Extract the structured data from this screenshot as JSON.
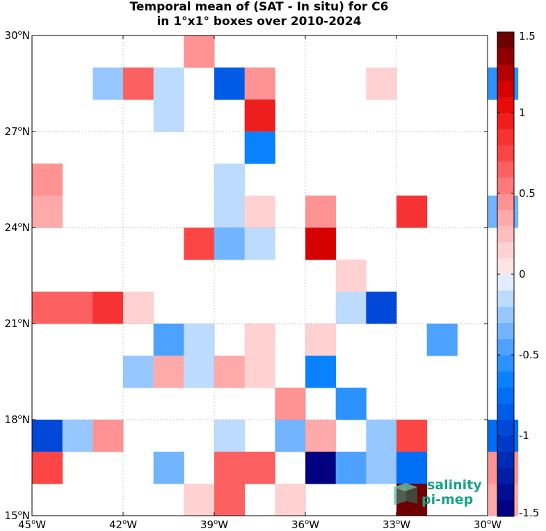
{
  "chart_data": {
    "type": "heatmap",
    "title_lines": [
      "Temporal mean of (SAT - In situ) for C6",
      "in 1°x1° boxes over 2010-2024"
    ],
    "xlim": [
      -45,
      -30
    ],
    "ylim": [
      15,
      30
    ],
    "x_ticks": [
      {
        "value": -45,
        "deg": "45",
        "hemi": "W"
      },
      {
        "value": -42,
        "deg": "42",
        "hemi": "W"
      },
      {
        "value": -39,
        "deg": "39",
        "hemi": "W"
      },
      {
        "value": -36,
        "deg": "36",
        "hemi": "W"
      },
      {
        "value": -33,
        "deg": "33",
        "hemi": "W"
      },
      {
        "value": -30,
        "deg": "30",
        "hemi": "W"
      }
    ],
    "y_ticks": [
      {
        "value": 30,
        "deg": "30",
        "hemi": "N"
      },
      {
        "value": 27,
        "deg": "27",
        "hemi": "N"
      },
      {
        "value": 24,
        "deg": "24",
        "hemi": "N"
      },
      {
        "value": 21,
        "deg": "21",
        "hemi": "N"
      },
      {
        "value": 18,
        "deg": "18",
        "hemi": "N"
      },
      {
        "value": 15,
        "deg": "15",
        "hemi": "N"
      }
    ],
    "grid": true,
    "colorbar": {
      "range": [
        -1.5,
        1.5
      ],
      "ticks": [
        {
          "value": 1.5,
          "label": "1.5"
        },
        {
          "value": 1.0,
          "label": "1"
        },
        {
          "value": 0.5,
          "label": "0.5"
        },
        {
          "value": 0.0,
          "label": "0"
        },
        {
          "value": -0.5,
          "label": "-0.5"
        },
        {
          "value": -1.0,
          "label": "-1"
        },
        {
          "value": -1.5,
          "label": "-1.5"
        }
      ]
    },
    "cells": [
      {
        "lon": -40,
        "lat": 29,
        "value": 0.4
      },
      {
        "lon": -43,
        "lat": 28,
        "value": -0.25
      },
      {
        "lon": -42,
        "lat": 28,
        "value": 0.6
      },
      {
        "lon": -41,
        "lat": 28,
        "value": -0.15
      },
      {
        "lon": -39,
        "lat": 28,
        "value": -0.85
      },
      {
        "lon": -38,
        "lat": 28,
        "value": 0.4
      },
      {
        "lon": -34,
        "lat": 28,
        "value": 0.15
      },
      {
        "lon": -30,
        "lat": 28,
        "value": -0.6
      },
      {
        "lon": -41,
        "lat": 27,
        "value": -0.15
      },
      {
        "lon": -38,
        "lat": 27,
        "value": 0.95
      },
      {
        "lon": -38,
        "lat": 26,
        "value": -0.7
      },
      {
        "lon": -45,
        "lat": 25,
        "value": 0.4
      },
      {
        "lon": -39,
        "lat": 25,
        "value": -0.15
      },
      {
        "lon": -45,
        "lat": 24,
        "value": 0.3
      },
      {
        "lon": -39,
        "lat": 24,
        "value": -0.15
      },
      {
        "lon": -38,
        "lat": 24,
        "value": 0.15
      },
      {
        "lon": -36,
        "lat": 24,
        "value": 0.4
      },
      {
        "lon": -33,
        "lat": 24,
        "value": 0.8
      },
      {
        "lon": -30,
        "lat": 24,
        "value": -0.35
      },
      {
        "lon": -40,
        "lat": 23,
        "value": 0.7
      },
      {
        "lon": -39,
        "lat": 23,
        "value": -0.3
      },
      {
        "lon": -38,
        "lat": 23,
        "value": -0.15
      },
      {
        "lon": -36,
        "lat": 23,
        "value": 1.1
      },
      {
        "lon": -35,
        "lat": 22,
        "value": 0.15
      },
      {
        "lon": -45,
        "lat": 21,
        "value": 0.6
      },
      {
        "lon": -44,
        "lat": 21,
        "value": 0.6
      },
      {
        "lon": -43,
        "lat": 21,
        "value": 0.8
      },
      {
        "lon": -42,
        "lat": 21,
        "value": 0.15
      },
      {
        "lon": -35,
        "lat": 21,
        "value": -0.15
      },
      {
        "lon": -34,
        "lat": 21,
        "value": -0.9
      },
      {
        "lon": -41,
        "lat": 20,
        "value": -0.45
      },
      {
        "lon": -40,
        "lat": 20,
        "value": -0.15
      },
      {
        "lon": -38,
        "lat": 20,
        "value": 0.15
      },
      {
        "lon": -36,
        "lat": 20,
        "value": 0.15
      },
      {
        "lon": -32,
        "lat": 20,
        "value": -0.5
      },
      {
        "lon": -42,
        "lat": 19,
        "value": -0.25
      },
      {
        "lon": -41,
        "lat": 19,
        "value": 0.3
      },
      {
        "lon": -40,
        "lat": 19,
        "value": -0.15
      },
      {
        "lon": -39,
        "lat": 19,
        "value": 0.3
      },
      {
        "lon": -38,
        "lat": 19,
        "value": 0.15
      },
      {
        "lon": -36,
        "lat": 19,
        "value": -0.7
      },
      {
        "lon": -37,
        "lat": 18,
        "value": 0.45
      },
      {
        "lon": -35,
        "lat": 18,
        "value": -0.6
      },
      {
        "lon": -45,
        "lat": 17,
        "value": -0.9
      },
      {
        "lon": -44,
        "lat": 17,
        "value": -0.25
      },
      {
        "lon": -43,
        "lat": 17,
        "value": 0.4
      },
      {
        "lon": -39,
        "lat": 17,
        "value": -0.15
      },
      {
        "lon": -37,
        "lat": 17,
        "value": -0.4
      },
      {
        "lon": -36,
        "lat": 17,
        "value": 0.3
      },
      {
        "lon": -34,
        "lat": 17,
        "value": -0.25
      },
      {
        "lon": -33,
        "lat": 17,
        "value": 0.7
      },
      {
        "lon": -30,
        "lat": 17,
        "value": -0.75
      },
      {
        "lon": -45,
        "lat": 16,
        "value": 0.7
      },
      {
        "lon": -41,
        "lat": 16,
        "value": -0.35
      },
      {
        "lon": -39,
        "lat": 16,
        "value": 0.6
      },
      {
        "lon": -38,
        "lat": 16,
        "value": 0.6
      },
      {
        "lon": -36,
        "lat": 16,
        "value": -1.5
      },
      {
        "lon": -35,
        "lat": 16,
        "value": -0.5
      },
      {
        "lon": -34,
        "lat": 16,
        "value": -0.25
      },
      {
        "lon": -33,
        "lat": 16,
        "value": -0.75
      },
      {
        "lon": -30,
        "lat": 16,
        "value": 0.4
      },
      {
        "lon": -40,
        "lat": 15,
        "value": 0.15
      },
      {
        "lon": -39,
        "lat": 15,
        "value": 0.6
      },
      {
        "lon": -37,
        "lat": 15,
        "value": 0.15
      },
      {
        "lon": -33,
        "lat": 15,
        "value": 1.4
      },
      {
        "lon": -30,
        "lat": 15,
        "value": 0.3
      }
    ]
  },
  "logo": {
    "line1": "salinity",
    "line2": "pi-mep"
  }
}
